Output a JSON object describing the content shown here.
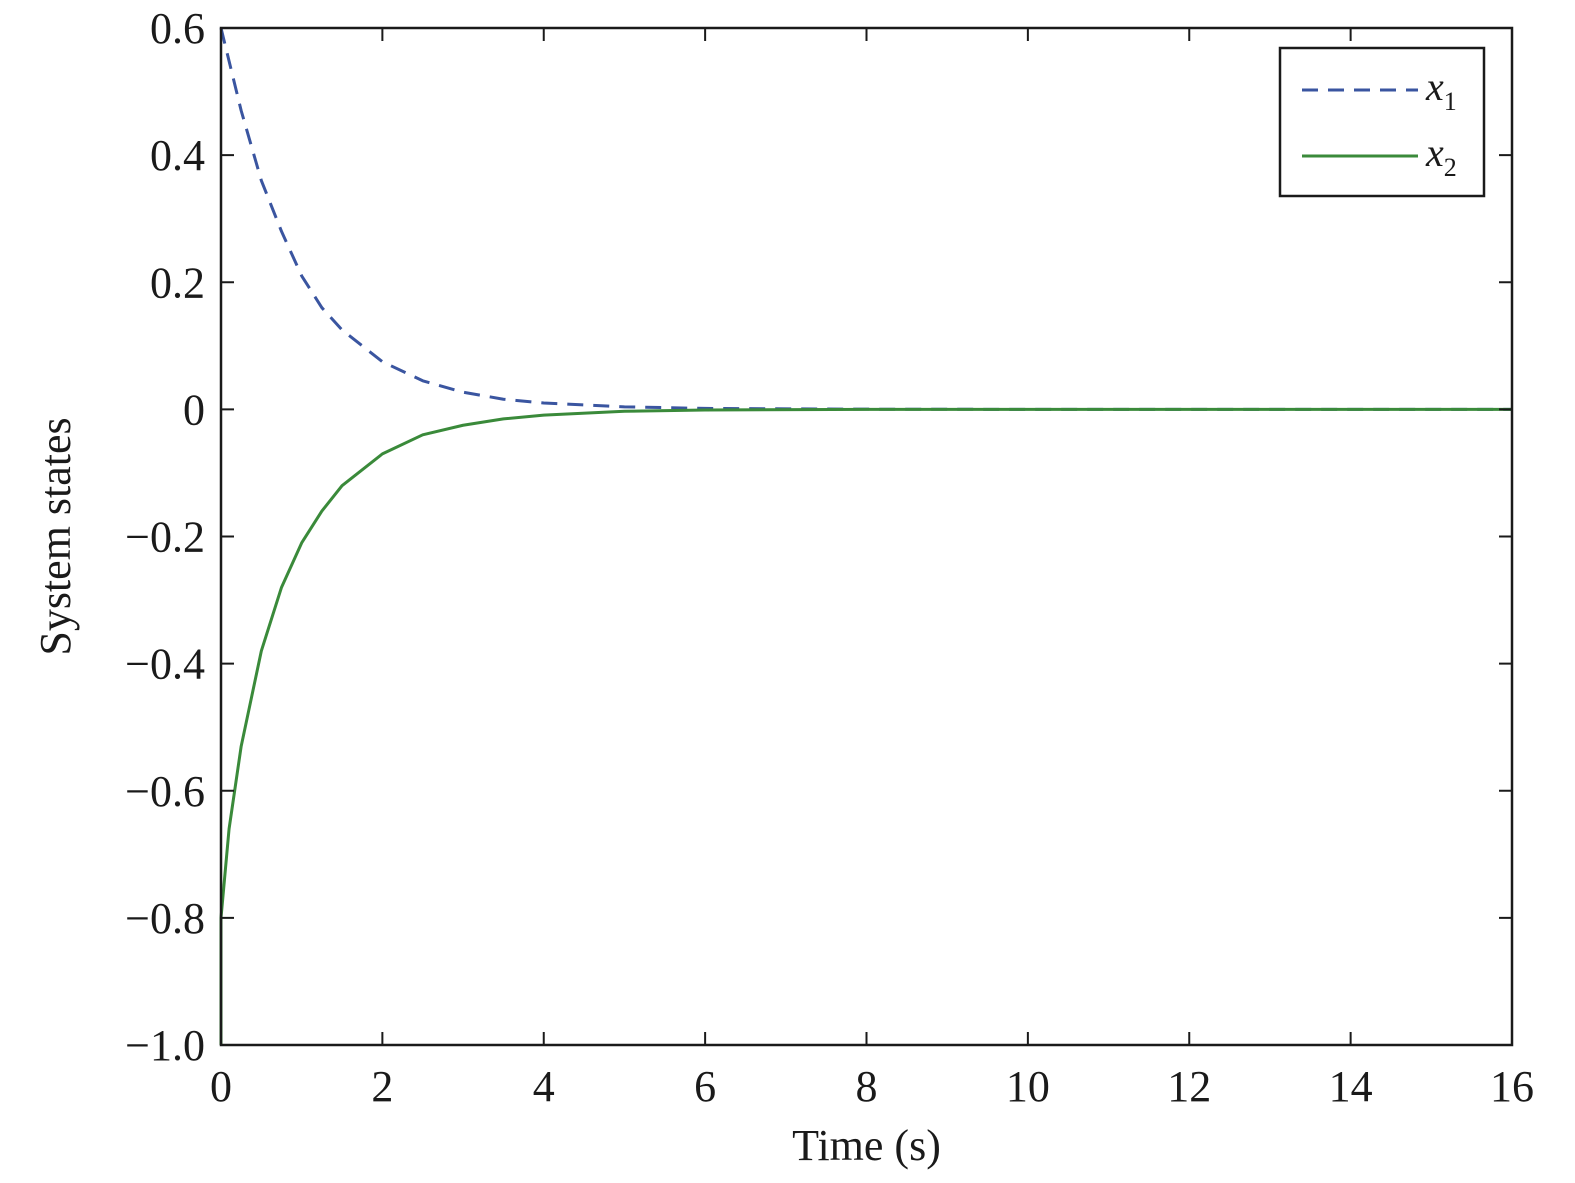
{
  "chart_data": {
    "type": "line",
    "xlabel": "Time (s)",
    "ylabel": "System states",
    "xlim": [
      0,
      16
    ],
    "ylim": [
      -1.0,
      0.6
    ],
    "xticks": [
      0,
      2,
      4,
      6,
      8,
      10,
      12,
      14,
      16
    ],
    "xtick_labels": [
      "0",
      "2",
      "4",
      "6",
      "8",
      "10",
      "12",
      "14",
      "16"
    ],
    "yticks": [
      0.6,
      0.4,
      0.2,
      0,
      -0.2,
      -0.4,
      -0.6,
      -0.8,
      -1.0
    ],
    "ytick_labels": [
      "0.6",
      "0.4",
      "0.2",
      "0",
      "−0.2",
      "−0.4",
      "−0.6",
      "−0.8",
      "−1.0"
    ],
    "grid": false,
    "legend_position": "top-right",
    "series": [
      {
        "name": "x",
        "subscript": "1",
        "style": "dashed",
        "color": "#3a55a0",
        "x": [
          0,
          0.25,
          0.5,
          0.75,
          1.0,
          1.25,
          1.5,
          2.0,
          2.5,
          3.0,
          3.5,
          4.0,
          5.0,
          6.0,
          8.0,
          10.0,
          12.0,
          14.0,
          16.0
        ],
        "y": [
          0.6,
          0.47,
          0.36,
          0.28,
          0.21,
          0.16,
          0.125,
          0.075,
          0.045,
          0.027,
          0.016,
          0.01,
          0.004,
          0.0015,
          0.0003,
          0.0,
          0.0,
          0.0,
          0.0
        ]
      },
      {
        "name": "x",
        "subscript": "2",
        "style": "solid",
        "color": "#3a8a3a",
        "x": [
          0,
          0.0,
          0.1,
          0.25,
          0.5,
          0.75,
          1.0,
          1.25,
          1.5,
          2.0,
          2.5,
          3.0,
          3.5,
          4.0,
          5.0,
          6.0,
          8.0,
          10.0,
          12.0,
          14.0,
          16.0
        ],
        "y": [
          -1.0,
          -0.8,
          -0.66,
          -0.53,
          -0.38,
          -0.28,
          -0.21,
          -0.16,
          -0.12,
          -0.07,
          -0.04,
          -0.025,
          -0.015,
          -0.009,
          -0.003,
          -0.001,
          0.0,
          0.0,
          0.0,
          0.0,
          0.0
        ]
      }
    ]
  }
}
